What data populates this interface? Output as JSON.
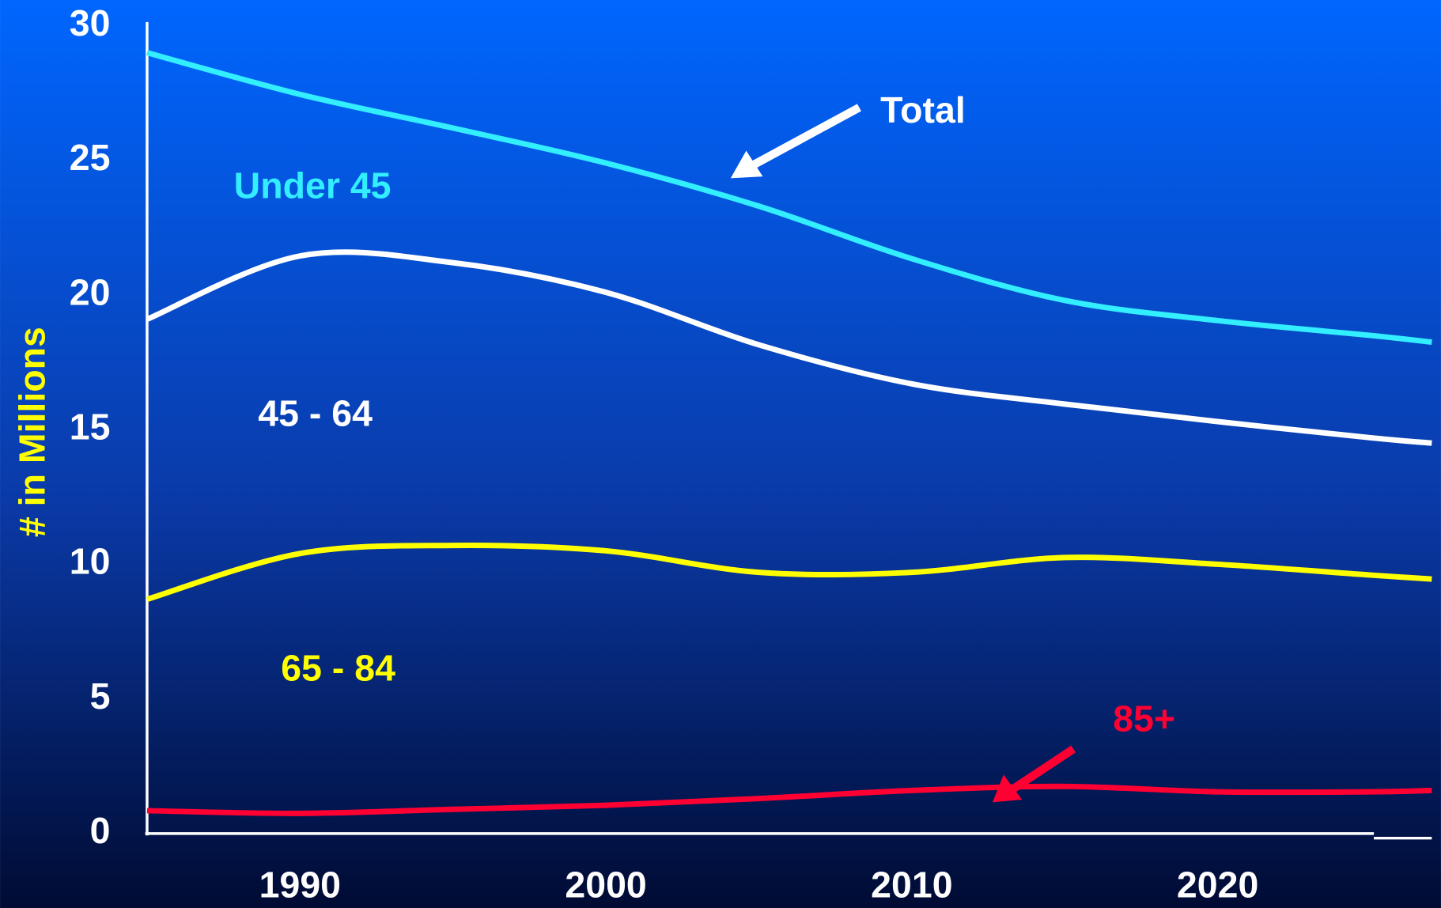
{
  "chart_data": {
    "type": "stacked_line",
    "ylabel": "# in Millions",
    "annotation": "Total",
    "x": [
      1985,
      1990,
      1995,
      2000,
      2005,
      2010,
      2015,
      2020,
      2025,
      2027
    ],
    "series": [
      {
        "name": "85+",
        "color": "#ff0033",
        "values": [
          0.85,
          0.75,
          0.9,
          1.05,
          1.3,
          1.6,
          1.75,
          1.55,
          1.55,
          1.6
        ]
      },
      {
        "name": "65 - 84",
        "color": "#ffff00",
        "values": [
          7.85,
          9.65,
          9.8,
          9.45,
          8.4,
          8.1,
          8.5,
          8.45,
          8.05,
          7.85
        ]
      },
      {
        "name": "45 - 64",
        "color": "#ffffff",
        "values": [
          10.4,
          11.05,
          10.5,
          9.6,
          8.45,
          7.0,
          5.7,
          5.3,
          5.1,
          5.05
        ]
      },
      {
        "name": "Under 45",
        "color": "#33eeff",
        "values": [
          9.9,
          6.0,
          5.0,
          4.8,
          5.15,
          4.65,
          3.85,
          3.75,
          3.8,
          3.75
        ]
      }
    ],
    "xlim": [
      1985,
      2027
    ],
    "xticks": [
      1990,
      2000,
      2010,
      2020
    ],
    "ylim": [
      0,
      30
    ],
    "yticks": [
      0,
      5,
      10,
      15,
      20,
      25,
      30
    ],
    "grid": false
  }
}
